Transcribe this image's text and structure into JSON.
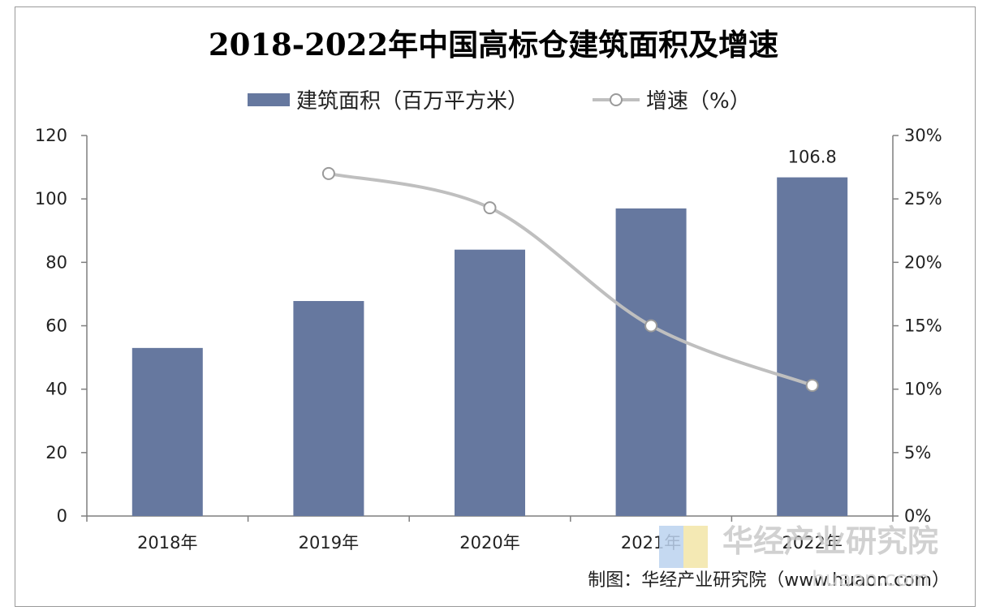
{
  "chart_data": {
    "type": "bar",
    "title": "2018-2022年中国高标仓建筑面积及增速",
    "categories": [
      "2018年",
      "2019年",
      "2020年",
      "2021年",
      "2022年"
    ],
    "series": [
      {
        "name": "建筑面积（百万平方米）",
        "type": "bar",
        "axis": "left",
        "values": [
          53,
          67.8,
          84,
          97,
          106.8
        ],
        "color": "#66789f"
      },
      {
        "name": "增速（%）",
        "type": "line",
        "axis": "right",
        "values": [
          null,
          27.0,
          24.3,
          15.0,
          10.3
        ],
        "color": "#bfbfbf"
      }
    ],
    "y_left": {
      "ylim": [
        0,
        120
      ],
      "ticks": [
        "0",
        "20",
        "40",
        "60",
        "80",
        "100",
        "120"
      ]
    },
    "y_right": {
      "ylim": [
        0,
        30
      ],
      "ticks": [
        "0%",
        "5%",
        "10%",
        "15%",
        "20%",
        "25%",
        "30%"
      ]
    },
    "data_labels": [
      {
        "category": "2022年",
        "text": "106.8"
      }
    ],
    "legend_position": "top-center",
    "grid": false
  },
  "source": "制图：华经产业研究院（www.huaon.com）",
  "watermark": {
    "name": "华经产业研究院",
    "url": "huaon.com"
  }
}
